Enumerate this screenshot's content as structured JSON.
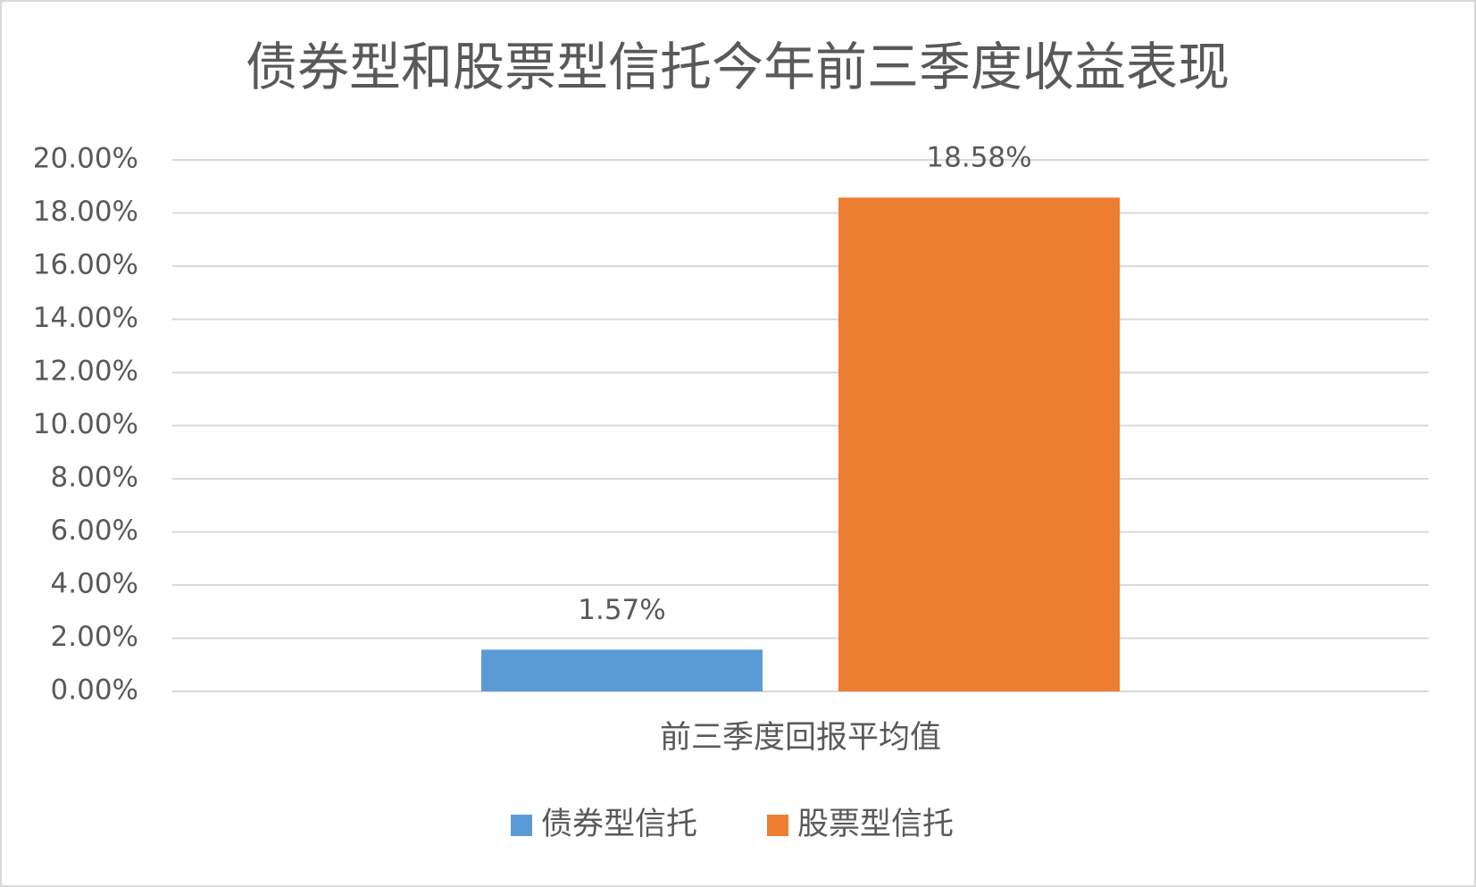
{
  "chart_data": {
    "type": "bar",
    "title": "债券型和股票型信托今年前三季度收益表现",
    "categories": [
      "前三季度回报平均值"
    ],
    "series": [
      {
        "name": "债券型信托",
        "color": "#5b9bd5",
        "values": [
          1.57
        ],
        "value_labels": [
          "1.57%"
        ]
      },
      {
        "name": "股票型信托",
        "color": "#ed7d31",
        "values": [
          18.58
        ],
        "value_labels": [
          "18.58%"
        ]
      }
    ],
    "ylim": [
      0,
      20
    ],
    "yticks": [
      {
        "value": 0,
        "label": "0.00%"
      },
      {
        "value": 2,
        "label": "2.00%"
      },
      {
        "value": 4,
        "label": "4.00%"
      },
      {
        "value": 6,
        "label": "6.00%"
      },
      {
        "value": 8,
        "label": "8.00%"
      },
      {
        "value": 10,
        "label": "10.00%"
      },
      {
        "value": 12,
        "label": "12.00%"
      },
      {
        "value": 14,
        "label": "14.00%"
      },
      {
        "value": 16,
        "label": "16.00%"
      },
      {
        "value": 18,
        "label": "18.00%"
      },
      {
        "value": 20,
        "label": "20.00%"
      }
    ],
    "grid": true,
    "legend": "bottom"
  }
}
